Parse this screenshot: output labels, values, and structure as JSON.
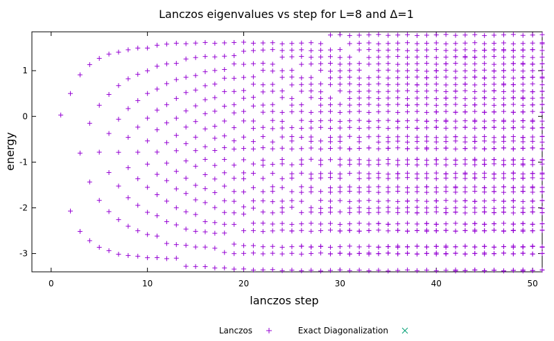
{
  "chart_data": {
    "type": "scatter",
    "title": "Lanczos eigenvalues vs step for L=8 and Δ=1",
    "xlabel": "lanczos step",
    "ylabel": "energy",
    "xlim": [
      -2,
      51
    ],
    "ylim": [
      -3.4,
      1.85
    ],
    "x_ticks": [
      0,
      10,
      20,
      30,
      40,
      50
    ],
    "y_ticks": [
      -3,
      -2,
      -1,
      0,
      1
    ],
    "x_tick_labels": [
      "0",
      "10",
      "20",
      "30",
      "40",
      "50"
    ],
    "y_tick_labels": [
      "-3",
      "-2",
      "-1",
      "0",
      "1"
    ],
    "grid": false,
    "legend_position": "bottom-center",
    "series": [
      {
        "name": "Lanczos",
        "marker": "plus",
        "color": "#9400d3",
        "steps": [
          1,
          51
        ],
        "spectrum_min": -3.37,
        "spectrum_max": 1.78,
        "first_step_energy": 0.03,
        "converged_levels": [
          -3.37,
          -3.0,
          -2.85,
          -2.5,
          -2.35,
          -2.1,
          -2.0,
          -1.85,
          -1.65,
          -1.55,
          -1.35,
          -1.25,
          -1.05,
          -0.95,
          -0.7,
          -0.55,
          -0.45,
          -0.25,
          -0.1,
          0.1,
          0.25,
          0.4,
          0.55,
          0.7,
          0.85,
          1.0,
          1.15,
          1.3,
          1.45,
          1.6,
          1.78
        ]
      },
      {
        "name": "Exact Diagonalization",
        "marker": "cross",
        "color": "#009e73",
        "values": []
      }
    ]
  }
}
